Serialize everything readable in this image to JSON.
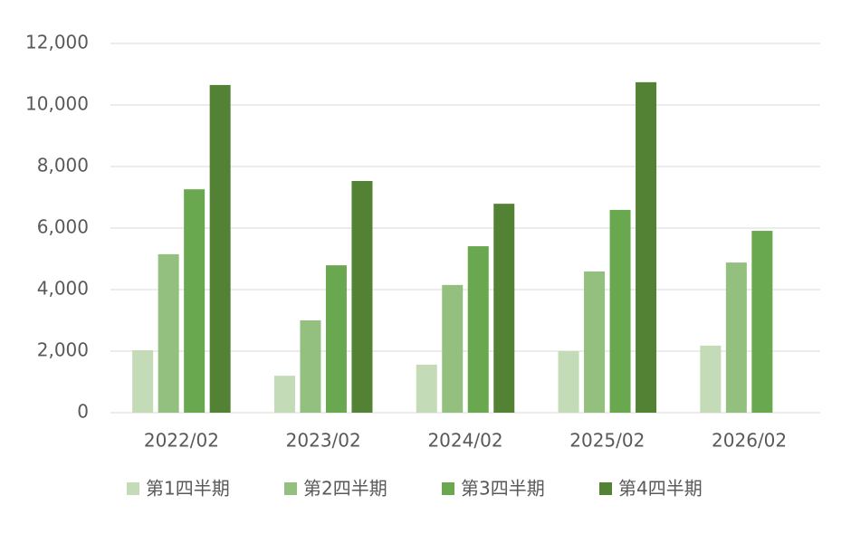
{
  "chart_data": {
    "type": "bar",
    "categories": [
      "2022/02",
      "2023/02",
      "2024/02",
      "2025/02",
      "2026/02"
    ],
    "series": [
      {
        "name": "第1四半期",
        "color": "#c3dbb6",
        "values": [
          2030,
          1200,
          1560,
          2000,
          2180
        ]
      },
      {
        "name": "第2四半期",
        "color": "#93bf7f",
        "values": [
          5150,
          3000,
          4150,
          4590,
          4880
        ]
      },
      {
        "name": "第3四半期",
        "color": "#6aa84f",
        "values": [
          7260,
          4790,
          5410,
          6590,
          5910
        ]
      },
      {
        "name": "第4四半期",
        "color": "#548235",
        "values": [
          10650,
          7530,
          6790,
          10740,
          null
        ]
      }
    ],
    "ylim": [
      0,
      12000
    ],
    "yticks": [
      0,
      {
        "value": 2000,
        "label": "2,000"
      },
      {
        "value": 4000,
        "label": "4,000"
      },
      {
        "value": 6000,
        "label": "6,000"
      },
      {
        "value": 8000,
        "label": "8,000"
      },
      {
        "value": 10000,
        "label": "10,000"
      },
      {
        "value": 12000,
        "label": "12,000"
      }
    ],
    "grid": true,
    "legend": "bottom"
  }
}
